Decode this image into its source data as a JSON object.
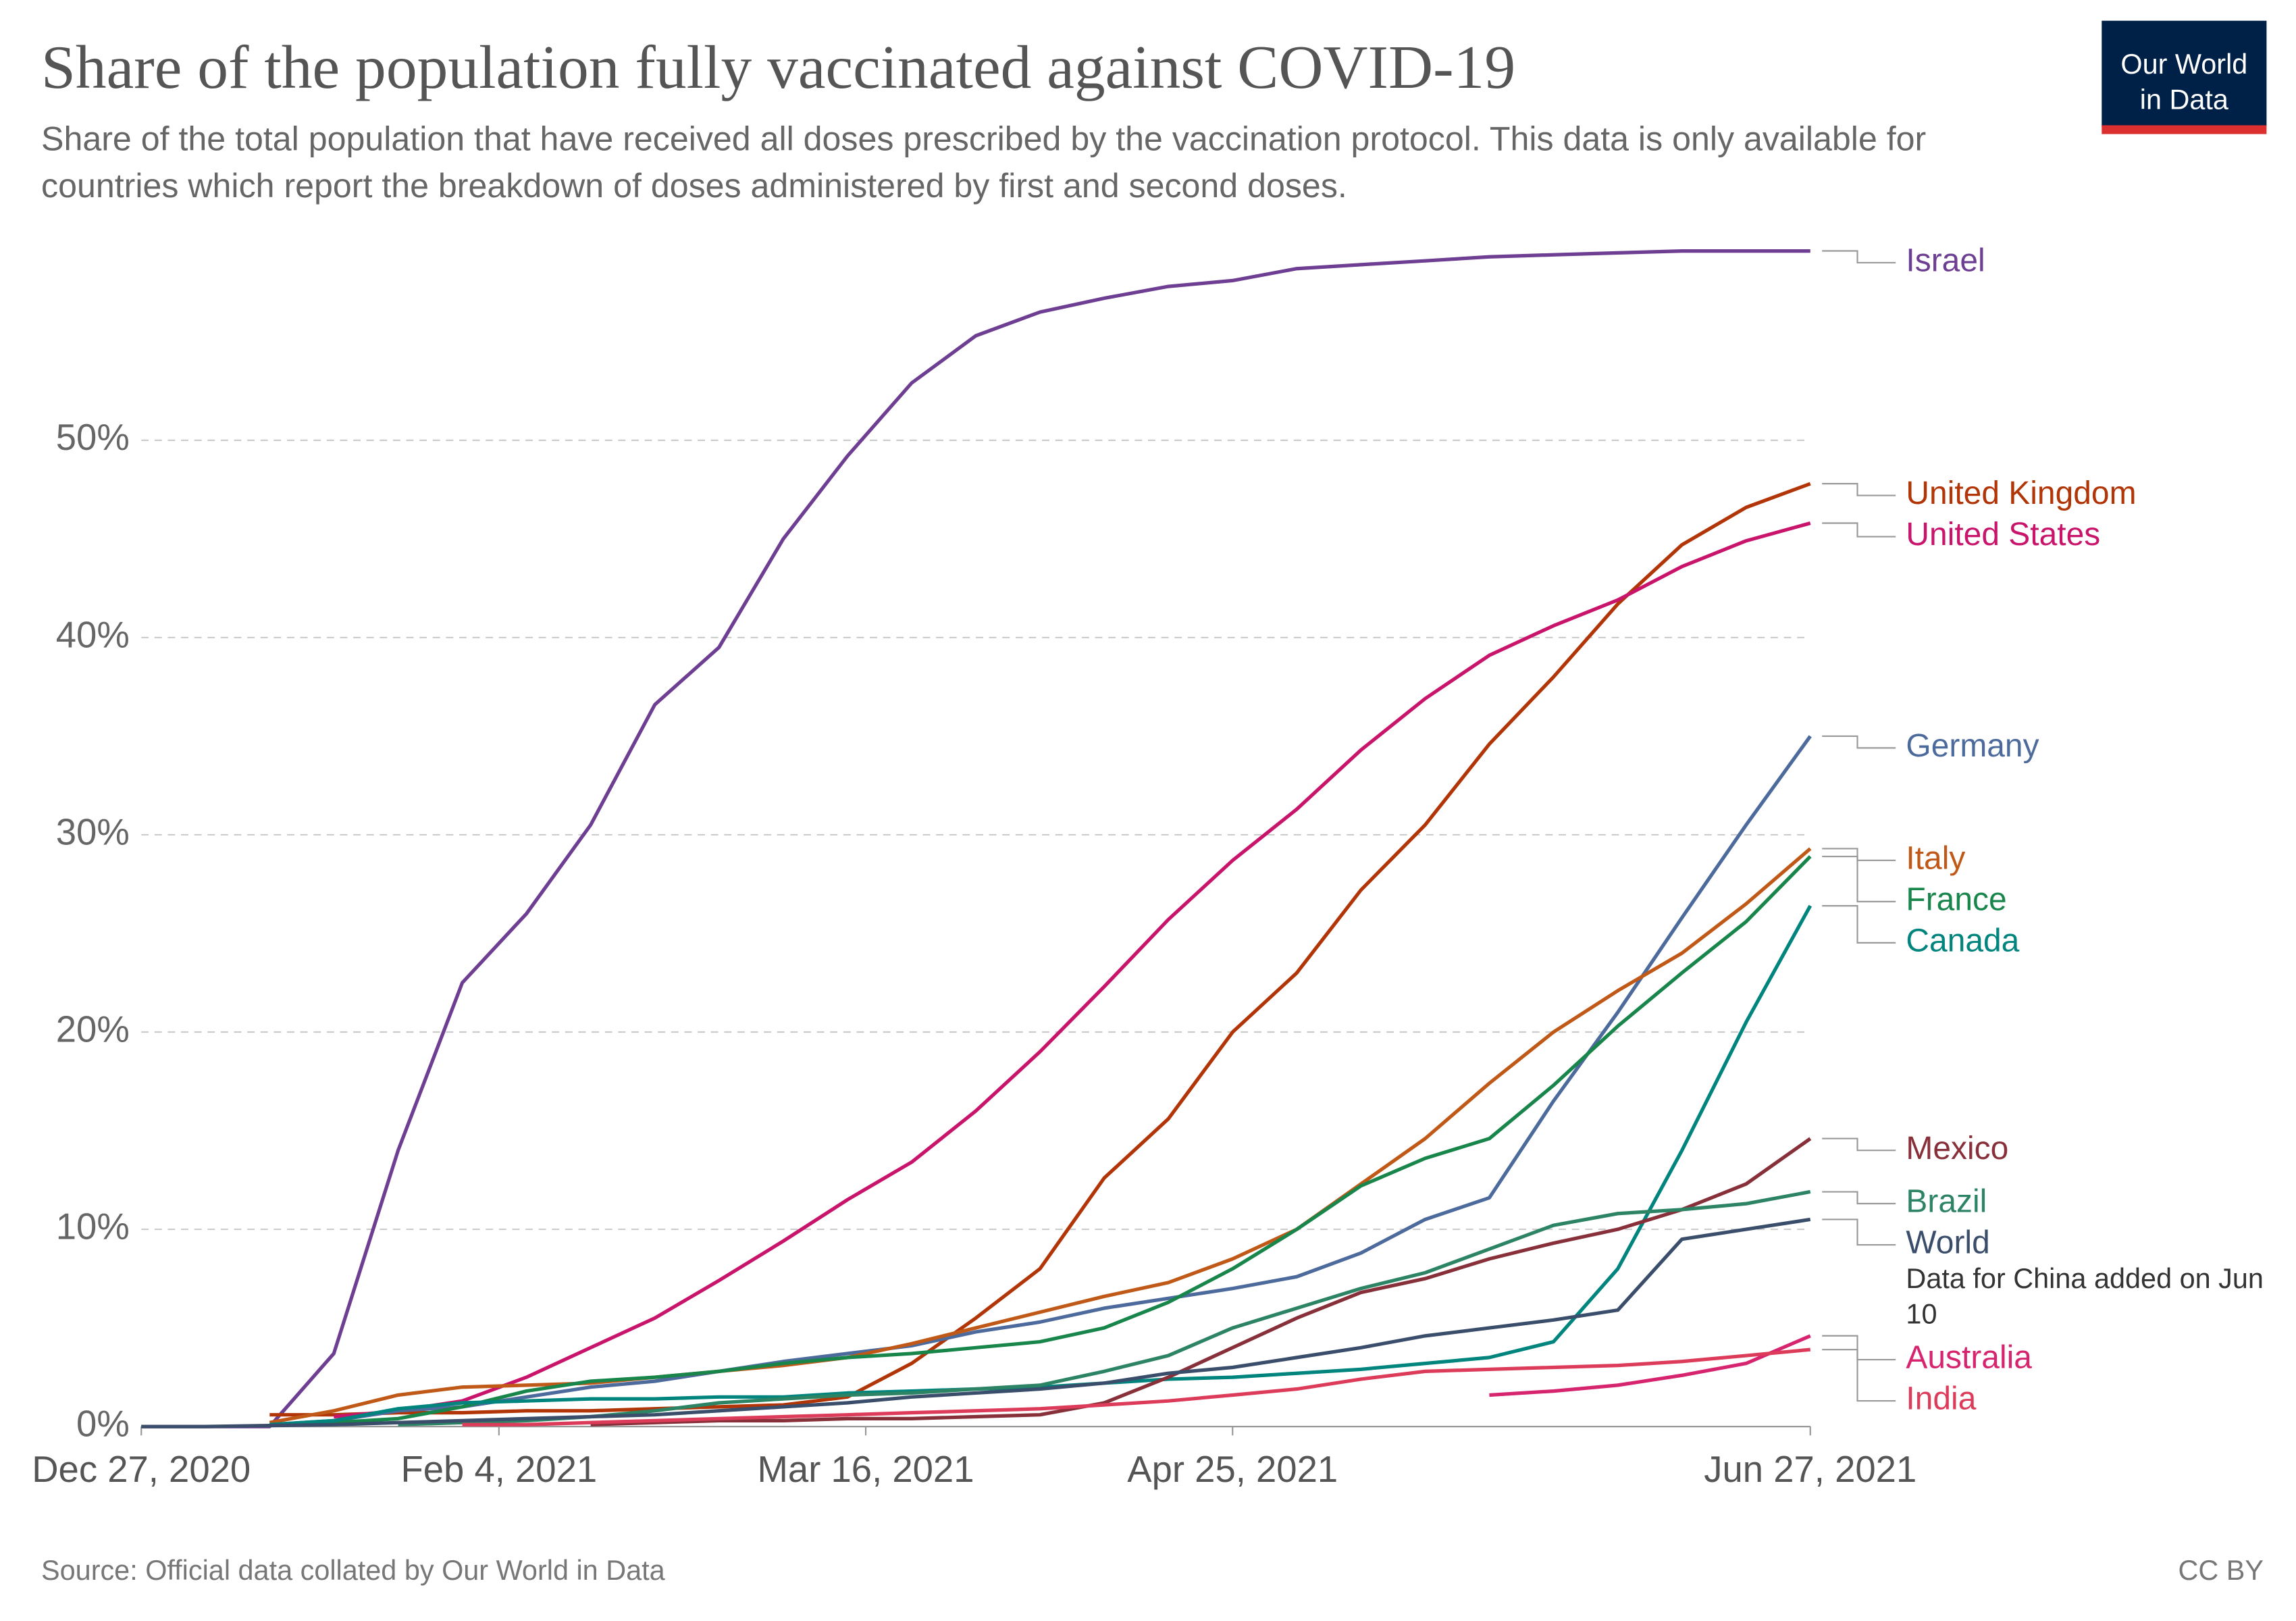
{
  "chart_data": {
    "type": "line",
    "title": "Share of the population fully vaccinated against COVID-19",
    "subtitle": "Share of the total population that have received all doses prescribed by the vaccination protocol. This data is only available for countries which report the breakdown of doses administered by first and second doses.",
    "logo": [
      "Our World",
      "in Data"
    ],
    "source": "Source: Official data collated by Our World in Data",
    "license": "CC BY",
    "x": [
      "2020-12-27",
      "2021-01-03",
      "2021-01-10",
      "2021-01-17",
      "2021-01-24",
      "2021-01-31",
      "2021-02-07",
      "2021-02-14",
      "2021-02-21",
      "2021-02-28",
      "2021-03-07",
      "2021-03-14",
      "2021-03-21",
      "2021-03-28",
      "2021-04-04",
      "2021-04-11",
      "2021-04-18",
      "2021-04-25",
      "2021-05-02",
      "2021-05-09",
      "2021-05-16",
      "2021-05-23",
      "2021-05-30",
      "2021-06-06",
      "2021-06-13",
      "2021-06-20",
      "2021-06-27"
    ],
    "xlim": [
      "2020-12-27",
      "2021-06-27"
    ],
    "xticks": [
      {
        "value": "2020-12-27",
        "label": "Dec 27, 2020"
      },
      {
        "value": "2021-02-04",
        "label": "Feb 4, 2021"
      },
      {
        "value": "2021-03-16",
        "label": "Mar 16, 2021"
      },
      {
        "value": "2021-04-25",
        "label": "Apr 25, 2021"
      },
      {
        "value": "2021-06-27",
        "label": "Jun 27, 2021"
      }
    ],
    "ylim": [
      0,
      60
    ],
    "yticks": [
      {
        "value": 0,
        "label": "0%"
      },
      {
        "value": 10,
        "label": "10%"
      },
      {
        "value": 20,
        "label": "20%"
      },
      {
        "value": 30,
        "label": "30%"
      },
      {
        "value": 40,
        "label": "40%"
      },
      {
        "value": 50,
        "label": "50%"
      }
    ],
    "grid": true,
    "series": [
      {
        "name": "Israel",
        "color": "#6d3e91",
        "values": [
          0,
          0,
          0,
          3.7,
          14,
          22.5,
          26,
          30.5,
          36.6,
          39.5,
          45,
          49.2,
          52.9,
          55.3,
          56.5,
          57.2,
          57.8,
          58.1,
          58.7,
          58.9,
          59.1,
          59.3,
          59.4,
          59.5,
          59.6,
          59.6,
          59.6
        ]
      },
      {
        "name": "United Kingdom",
        "color": "#b13507",
        "values": [
          null,
          null,
          0.6,
          0.6,
          0.7,
          0.7,
          0.8,
          0.8,
          0.9,
          1.0,
          1.1,
          1.5,
          3.2,
          5.5,
          8,
          12.6,
          15.6,
          20,
          23,
          27.2,
          30.5,
          34.6,
          38,
          41.7,
          44.7,
          46.6,
          47.8
        ]
      },
      {
        "name": "United States",
        "color": "#c8156b",
        "values": [
          null,
          null,
          null,
          0.5,
          0.8,
          1.3,
          2.5,
          4,
          5.5,
          7.4,
          9.4,
          11.5,
          13.4,
          16,
          19,
          22.3,
          25.7,
          28.7,
          31.3,
          34.3,
          36.9,
          39.1,
          40.6,
          41.9,
          43.6,
          44.9,
          45.8
        ]
      },
      {
        "name": "Germany",
        "color": "#4c6a9c",
        "values": [
          null,
          null,
          0.1,
          0.3,
          0.8,
          1.0,
          1.5,
          2.0,
          2.3,
          2.8,
          3.3,
          3.7,
          4.1,
          4.8,
          5.3,
          6.0,
          6.5,
          7.0,
          7.6,
          8.8,
          10.5,
          11.6,
          16.5,
          21,
          25.8,
          30.5,
          35.0
        ]
      },
      {
        "name": "Italy",
        "color": "#c05917",
        "values": [
          null,
          null,
          0.2,
          0.8,
          1.6,
          2.0,
          2.1,
          2.2,
          2.5,
          2.8,
          3.1,
          3.5,
          4.2,
          5.0,
          5.8,
          6.6,
          7.3,
          8.5,
          10.0,
          12.3,
          14.6,
          17.4,
          20.0,
          22.1,
          24.0,
          26.5,
          29.3
        ]
      },
      {
        "name": "France",
        "color": "#18864b",
        "values": [
          null,
          null,
          0.1,
          0.2,
          0.4,
          1.0,
          1.8,
          2.3,
          2.5,
          2.8,
          3.2,
          3.5,
          3.7,
          4.0,
          4.3,
          5.0,
          6.3,
          8.0,
          10.0,
          12.2,
          13.6,
          14.6,
          17.3,
          20.3,
          23.0,
          25.6,
          28.9
        ]
      },
      {
        "name": "Canada",
        "color": "#00847e",
        "values": [
          null,
          null,
          0.1,
          0.3,
          0.9,
          1.2,
          1.3,
          1.4,
          1.4,
          1.5,
          1.5,
          1.7,
          1.8,
          1.9,
          2.0,
          2.2,
          2.4,
          2.5,
          2.7,
          2.9,
          3.2,
          3.5,
          4.3,
          8.0,
          14.0,
          20.5,
          26.4
        ]
      },
      {
        "name": "Mexico",
        "color": "#883039",
        "values": [
          null,
          null,
          null,
          null,
          null,
          null,
          null,
          0.1,
          0.2,
          0.3,
          0.3,
          0.4,
          0.4,
          0.5,
          0.6,
          1.2,
          2.5,
          4.0,
          5.5,
          6.8,
          7.5,
          8.5,
          9.3,
          10.0,
          11.0,
          12.3,
          14.6
        ]
      },
      {
        "name": "Brazil",
        "color": "#2c8465",
        "values": [
          null,
          null,
          null,
          null,
          0.1,
          0.2,
          0.3,
          0.5,
          0.8,
          1.2,
          1.4,
          1.6,
          1.7,
          1.9,
          2.1,
          2.8,
          3.6,
          5.0,
          6.0,
          7.0,
          7.8,
          9.0,
          10.2,
          10.8,
          11.0,
          11.3,
          11.9
        ]
      },
      {
        "name": "World",
        "color": "#3a4e6b",
        "note": "Data for China added on Jun 10",
        "values": [
          0,
          0,
          0.05,
          0.1,
          0.2,
          0.3,
          0.4,
          0.5,
          0.6,
          0.8,
          1.0,
          1.2,
          1.5,
          1.7,
          1.9,
          2.2,
          2.7,
          3.0,
          3.5,
          4.0,
          4.6,
          5.0,
          5.4,
          5.9,
          9.5,
          10.0,
          10.5
        ]
      },
      {
        "name": "Australia",
        "color": "#d6246e",
        "values": [
          null,
          null,
          null,
          null,
          null,
          null,
          null,
          null,
          null,
          null,
          null,
          null,
          null,
          null,
          null,
          null,
          null,
          null,
          null,
          null,
          null,
          1.6,
          1.8,
          2.1,
          2.6,
          3.2,
          4.6
        ]
      },
      {
        "name": "India",
        "color": "#dc3c5a",
        "values": [
          null,
          null,
          null,
          null,
          null,
          0.1,
          0.1,
          0.2,
          0.3,
          0.4,
          0.5,
          0.6,
          0.7,
          0.8,
          0.9,
          1.1,
          1.3,
          1.6,
          1.9,
          2.4,
          2.8,
          2.9,
          3.0,
          3.1,
          3.3,
          3.6,
          3.9
        ]
      }
    ]
  }
}
